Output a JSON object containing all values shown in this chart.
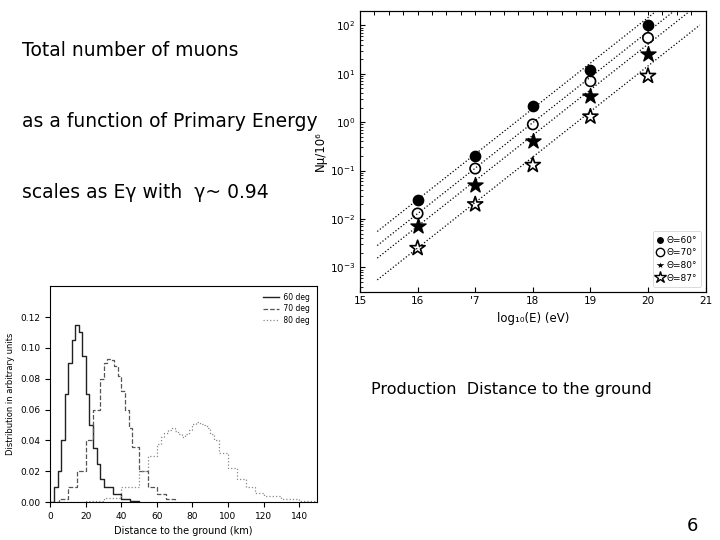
{
  "title_line1": "Total number of muons",
  "title_line2": "as a function of Primary Energy",
  "title_line3": "scales as Eγ with  γ~ 0.94",
  "bottom_label": "Production  Distance to the ground",
  "page_number": "6",
  "scatter": {
    "ylabel": "Nμ/10⁶",
    "xlabel": "log₁₀(E) (eV)",
    "xlim": [
      15,
      21
    ],
    "ylim_log": [
      -3.5,
      2.3
    ],
    "series": [
      {
        "label": "Θ=60°",
        "marker": "o",
        "filled": true,
        "x": [
          16,
          17,
          18,
          19,
          20
        ],
        "y": [
          0.025,
          0.2,
          2.2,
          12.0,
          100.0
        ]
      },
      {
        "label": "Θ=70°",
        "marker": "o",
        "filled": false,
        "x": [
          16,
          17,
          18,
          19,
          20
        ],
        "y": [
          0.013,
          0.11,
          0.9,
          7.0,
          55.0
        ]
      },
      {
        "label": "Θ=80°",
        "marker": "*",
        "filled": true,
        "x": [
          16,
          17,
          18,
          19,
          20
        ],
        "y": [
          0.007,
          0.05,
          0.4,
          3.5,
          25.0
        ]
      },
      {
        "label": "Θ=87°",
        "marker": "*",
        "filled": false,
        "x": [
          16,
          17,
          18,
          19,
          20
        ],
        "y": [
          0.0025,
          0.02,
          0.13,
          1.3,
          9.0
        ]
      }
    ],
    "fit_slope": 0.94,
    "fit_offsets_log16": [
      -1.6,
      -1.89,
      -2.15,
      -2.6
    ]
  },
  "histogram": {
    "ylabel": "Distribution in arbitrary units",
    "xlabel": "Distance to the ground (km)",
    "xlim": [
      0,
      150
    ],
    "ylim": [
      0,
      0.14
    ],
    "yticks": [
      0,
      0.02,
      0.04,
      0.06,
      0.08,
      0.1,
      0.12
    ],
    "xticks": [
      0,
      20,
      40,
      60,
      80,
      100,
      120,
      140
    ]
  },
  "background_color": "#ffffff",
  "text_color": "#000000"
}
